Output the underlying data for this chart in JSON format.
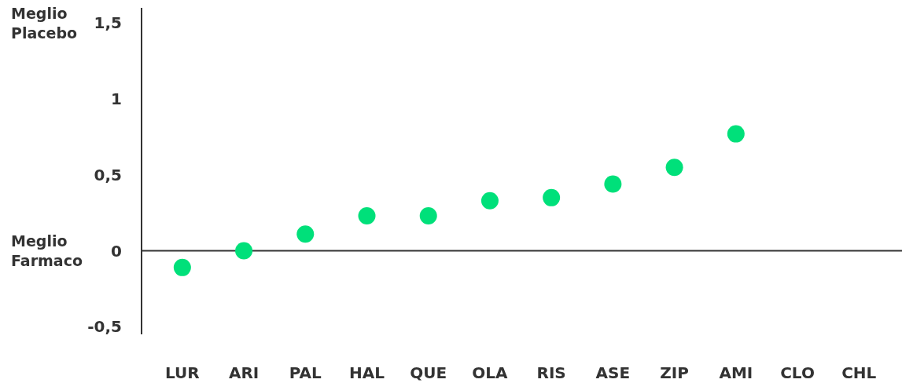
{
  "chart_data": {
    "type": "scatter",
    "categories": [
      "LUR",
      "ARI",
      "PAL",
      "HAL",
      "QUE",
      "OLA",
      "RIS",
      "ASE",
      "ZIP",
      "AMI",
      "CLO",
      "CHL"
    ],
    "series": [
      {
        "color": "#00e07a",
        "values": [
          -0.11,
          0,
          0.11,
          0.23,
          0.23,
          0.33,
          0.35,
          0.44,
          0.55,
          0.77,
          null,
          null
        ]
      }
    ],
    "ylim": [
      -0.55,
      1.6
    ],
    "yticks": [
      {
        "value": -0.5,
        "label": "-0,5"
      },
      0,
      {
        "value": 0.5,
        "label": "0,5"
      },
      1,
      {
        "value": 1.5,
        "label": "1,5"
      }
    ],
    "annotations": [
      "Meglio\nPlacebo",
      "Meglio\nFarmaco"
    ],
    "ref_lines": [
      {
        "axis": "y",
        "value": 0,
        "color": "#333333",
        "line_style": "solid"
      }
    ],
    "marker": "circle"
  }
}
